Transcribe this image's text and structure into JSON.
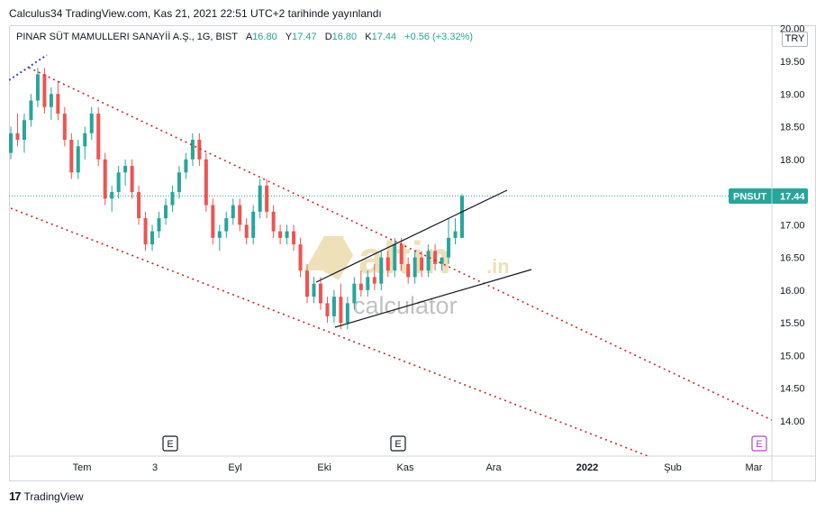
{
  "header": {
    "publish_line": "Calculus34 TradingView.com, Kas 21, 2021 22:51 UTC+2 tarihinde yayınlandı"
  },
  "legend": {
    "symbol": "PINAR SÜT MAMULLERI SANAYİİ A.Ş., 1G, BIST",
    "open_label": "A",
    "open": "16.80",
    "high_label": "Y",
    "high": "17.47",
    "low_label": "D",
    "low": "16.80",
    "close_label": "K",
    "close": "17.44",
    "change": "+0.56 (+3.32%)"
  },
  "currency": "TRY",
  "price_badge": {
    "ticker": "PNSUT",
    "value": "17.44"
  },
  "watermark": {
    "brand": "altin",
    "tld": ".in",
    "sub": "calculator"
  },
  "footer": {
    "logo": "17",
    "text": "TradingView"
  },
  "events": [
    "E",
    "E",
    "E"
  ],
  "colors": {
    "up": "#26a69a",
    "down": "#ef5350",
    "channel": "#c62828",
    "trend": "#131722",
    "wedge_extension": "#3949ab"
  },
  "chart_data": {
    "type": "candlestick",
    "y_ticks": [
      "14.00",
      "14.50",
      "15.00",
      "15.50",
      "16.00",
      "16.50",
      "17.00",
      "17.50",
      "18.00",
      "18.50",
      "19.00",
      "19.50",
      "20.00"
    ],
    "ylim": [
      13.6,
      20.05
    ],
    "x_ticks": [
      {
        "label": "Tem",
        "bold": false
      },
      {
        "label": "3",
        "bold": false
      },
      {
        "label": "Eyl",
        "bold": false
      },
      {
        "label": "Eki",
        "bold": false
      },
      {
        "label": "Kas",
        "bold": false
      },
      {
        "label": "Ara",
        "bold": false
      },
      {
        "label": "2022",
        "bold": true
      },
      {
        "label": "Şub",
        "bold": false
      },
      {
        "label": "Mar",
        "bold": false
      }
    ],
    "last_price": 17.44,
    "candles": [
      [
        18.1,
        18.5,
        18.0,
        18.4
      ],
      [
        18.4,
        18.7,
        18.2,
        18.3
      ],
      [
        18.3,
        18.7,
        18.1,
        18.6
      ],
      [
        18.6,
        19.0,
        18.5,
        18.9
      ],
      [
        18.9,
        19.4,
        18.8,
        19.3
      ],
      [
        19.3,
        19.4,
        18.7,
        18.8
      ],
      [
        18.8,
        19.1,
        18.6,
        19.0
      ],
      [
        19.0,
        19.2,
        18.6,
        18.7
      ],
      [
        18.7,
        18.8,
        18.2,
        18.3
      ],
      [
        18.3,
        18.4,
        17.7,
        17.8
      ],
      [
        17.8,
        18.3,
        17.7,
        18.2
      ],
      [
        18.2,
        18.5,
        18.0,
        18.4
      ],
      [
        18.4,
        18.8,
        18.3,
        18.7
      ],
      [
        18.7,
        18.8,
        17.9,
        18.0
      ],
      [
        18.0,
        18.1,
        17.3,
        17.4
      ],
      [
        17.4,
        17.6,
        17.2,
        17.5
      ],
      [
        17.5,
        17.9,
        17.4,
        17.8
      ],
      [
        17.8,
        18.0,
        17.6,
        17.9
      ],
      [
        17.9,
        18.0,
        17.4,
        17.5
      ],
      [
        17.5,
        17.6,
        17.0,
        17.1
      ],
      [
        17.1,
        17.2,
        16.6,
        16.7
      ],
      [
        16.7,
        17.0,
        16.6,
        16.9
      ],
      [
        16.9,
        17.2,
        16.8,
        17.1
      ],
      [
        17.1,
        17.4,
        17.0,
        17.3
      ],
      [
        17.3,
        17.6,
        17.2,
        17.5
      ],
      [
        17.5,
        17.9,
        17.4,
        17.8
      ],
      [
        17.8,
        18.1,
        17.7,
        18.0
      ],
      [
        18.0,
        18.4,
        17.9,
        18.3
      ],
      [
        18.3,
        18.4,
        17.9,
        18.0
      ],
      [
        18.0,
        18.1,
        17.2,
        17.3
      ],
      [
        17.3,
        17.4,
        16.7,
        16.8
      ],
      [
        16.8,
        17.0,
        16.6,
        16.9
      ],
      [
        16.9,
        17.2,
        16.8,
        17.1
      ],
      [
        17.1,
        17.4,
        17.0,
        17.3
      ],
      [
        17.3,
        17.4,
        16.9,
        17.0
      ],
      [
        17.0,
        17.1,
        16.7,
        16.8
      ],
      [
        16.8,
        17.3,
        16.7,
        17.2
      ],
      [
        17.2,
        17.7,
        17.1,
        17.6
      ],
      [
        17.6,
        17.7,
        17.1,
        17.2
      ],
      [
        17.2,
        17.3,
        16.8,
        16.9
      ],
      [
        16.9,
        17.0,
        16.7,
        16.8
      ],
      [
        16.8,
        17.0,
        16.7,
        16.9
      ],
      [
        16.9,
        17.0,
        16.6,
        16.7
      ],
      [
        16.7,
        16.8,
        16.2,
        16.3
      ],
      [
        16.3,
        16.4,
        15.8,
        15.9
      ],
      [
        15.9,
        16.2,
        15.8,
        16.1
      ],
      [
        16.1,
        16.2,
        15.7,
        15.8
      ],
      [
        15.8,
        15.9,
        15.5,
        15.6
      ],
      [
        15.6,
        16.0,
        15.5,
        15.9
      ],
      [
        15.9,
        16.1,
        15.4,
        15.5
      ],
      [
        15.5,
        15.9,
        15.4,
        15.8
      ],
      [
        15.8,
        16.2,
        15.7,
        16.1
      ],
      [
        16.1,
        16.3,
        15.9,
        16.0
      ],
      [
        16.0,
        16.3,
        15.9,
        16.2
      ],
      [
        16.2,
        16.4,
        16.0,
        16.1
      ],
      [
        16.1,
        16.6,
        16.0,
        16.5
      ],
      [
        16.5,
        16.6,
        16.2,
        16.3
      ],
      [
        16.3,
        16.8,
        16.2,
        16.7
      ],
      [
        16.7,
        16.8,
        16.3,
        16.4
      ],
      [
        16.4,
        16.5,
        16.1,
        16.2
      ],
      [
        16.2,
        16.6,
        16.1,
        16.5
      ],
      [
        16.5,
        16.6,
        16.2,
        16.3
      ],
      [
        16.3,
        16.7,
        16.2,
        16.6
      ],
      [
        16.6,
        16.7,
        16.3,
        16.4
      ],
      [
        16.4,
        16.5,
        16.3,
        16.5
      ],
      [
        16.5,
        17.1,
        16.4,
        16.8
      ],
      [
        16.8,
        17.1,
        16.7,
        16.9
      ],
      [
        16.8,
        17.47,
        16.8,
        17.44
      ]
    ]
  }
}
